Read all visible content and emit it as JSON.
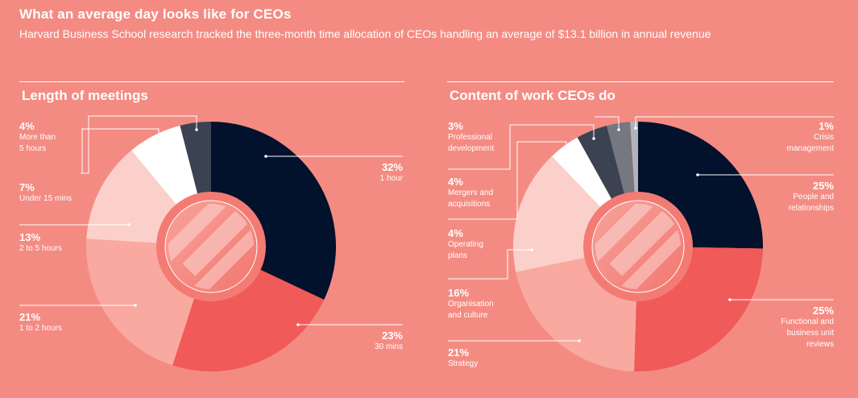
{
  "header": {
    "title": "What an average day looks like for CEOs",
    "subtitle": "Harvard Business School research tracked the three-month time allocation of CEOs handling an average of $13.1 billion in annual revenue"
  },
  "colors": {
    "background": "#f48b82",
    "navy": "#02112c",
    "red": "#f05a58",
    "salmon": "#f9a99f",
    "pale": "#fcd0ca",
    "white": "#ffffff",
    "slate": "#3b4251",
    "gray": "#757781",
    "silver": "#b2b2ba"
  },
  "chart_data": [
    {
      "type": "pie",
      "title": "Length of meetings",
      "unit": "%",
      "slices": [
        {
          "pct": "32%",
          "label": "1 hour",
          "value": 32,
          "color": "#02112c"
        },
        {
          "pct": "23%",
          "label": "30 mins",
          "value": 23,
          "color": "#f05a58"
        },
        {
          "pct": "21%",
          "label": "1 to 2 hours",
          "value": 21,
          "color": "#f9a99f"
        },
        {
          "pct": "13%",
          "label": "2 to 5 hours",
          "value": 13,
          "color": "#fcd0ca"
        },
        {
          "pct": "7%",
          "label": "Under 15 mins",
          "value": 7,
          "color": "#ffffff"
        },
        {
          "pct": "4%",
          "label": "More than\n5 hours",
          "value": 4,
          "color": "#3b4251"
        }
      ]
    },
    {
      "type": "pie",
      "title": "Content of work CEOs do",
      "unit": "%",
      "slices": [
        {
          "pct": "25%",
          "label": "People and\nrelationships",
          "value": 25,
          "color": "#02112c"
        },
        {
          "pct": "25%",
          "label": "Functional and\nbusiness unit\nreviews",
          "value": 25,
          "color": "#f05a58"
        },
        {
          "pct": "21%",
          "label": "Strategy",
          "value": 21,
          "color": "#f9a99f"
        },
        {
          "pct": "16%",
          "label": "Organisation\nand culture",
          "value": 16,
          "color": "#fcd0ca"
        },
        {
          "pct": "4%",
          "label": "Operating\nplans",
          "value": 4,
          "color": "#ffffff"
        },
        {
          "pct": "4%",
          "label": "Mergers and\nacquisitions",
          "value": 4,
          "color": "#3b4251"
        },
        {
          "pct": "3%",
          "label": "Professional\ndevelopment",
          "value": 3,
          "color": "#757781"
        },
        {
          "pct": "1%",
          "label": "Crisis\nmanagement",
          "value": 1,
          "color": "#b2b2ba"
        }
      ]
    }
  ]
}
